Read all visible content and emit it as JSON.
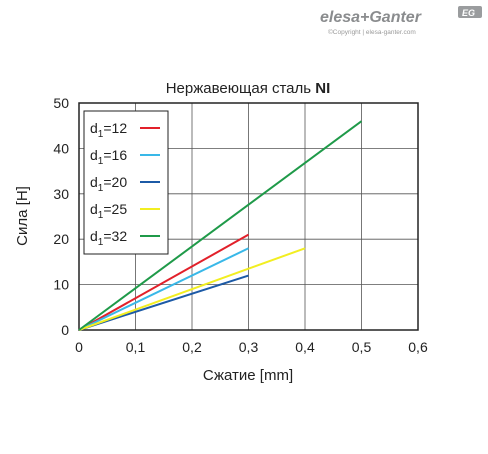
{
  "brand": {
    "name_a": "elesa",
    "name_b": "+Ganter",
    "badge": "EG",
    "copyright": "©Copyright | elesa-ganter.com"
  },
  "chart_data": {
    "type": "line",
    "title_prefix": "Нержавеющая сталь ",
    "title_bold": "NI",
    "xlabel": "Сжатие [mm]",
    "ylabel": "Сила [Н]",
    "xlim": [
      0,
      0.6
    ],
    "ylim": [
      0,
      50
    ],
    "xticks": [
      0,
      0.1,
      0.2,
      0.3,
      0.4,
      0.5,
      0.6
    ],
    "xtick_labels": [
      "0",
      "0,1",
      "0,2",
      "0,3",
      "0,4",
      "0,5",
      "0,6"
    ],
    "yticks": [
      0,
      10,
      20,
      30,
      40,
      50
    ],
    "ytick_labels": [
      "0",
      "10",
      "20",
      "30",
      "40",
      "50"
    ],
    "grid": true,
    "legend_position": "top-left",
    "series": [
      {
        "name_main": "d",
        "name_sub": "1",
        "name_rest": "=12",
        "color": "#e2202a",
        "x": [
          0,
          0.3
        ],
        "y": [
          0,
          21
        ]
      },
      {
        "name_main": "d",
        "name_sub": "1",
        "name_rest": "=16",
        "color": "#39b8e8",
        "x": [
          0,
          0.3
        ],
        "y": [
          0,
          18
        ]
      },
      {
        "name_main": "d",
        "name_sub": "1",
        "name_rest": "=20",
        "color": "#1c5aa6",
        "x": [
          0,
          0.3
        ],
        "y": [
          0,
          12
        ]
      },
      {
        "name_main": "d",
        "name_sub": "1",
        "name_rest": "=25",
        "color": "#f2ee21",
        "x": [
          0,
          0.4
        ],
        "y": [
          0,
          18
        ]
      },
      {
        "name_main": "d",
        "name_sub": "1",
        "name_rest": "=32",
        "color": "#1f9a49",
        "x": [
          0,
          0.5
        ],
        "y": [
          0,
          46
        ]
      }
    ]
  }
}
